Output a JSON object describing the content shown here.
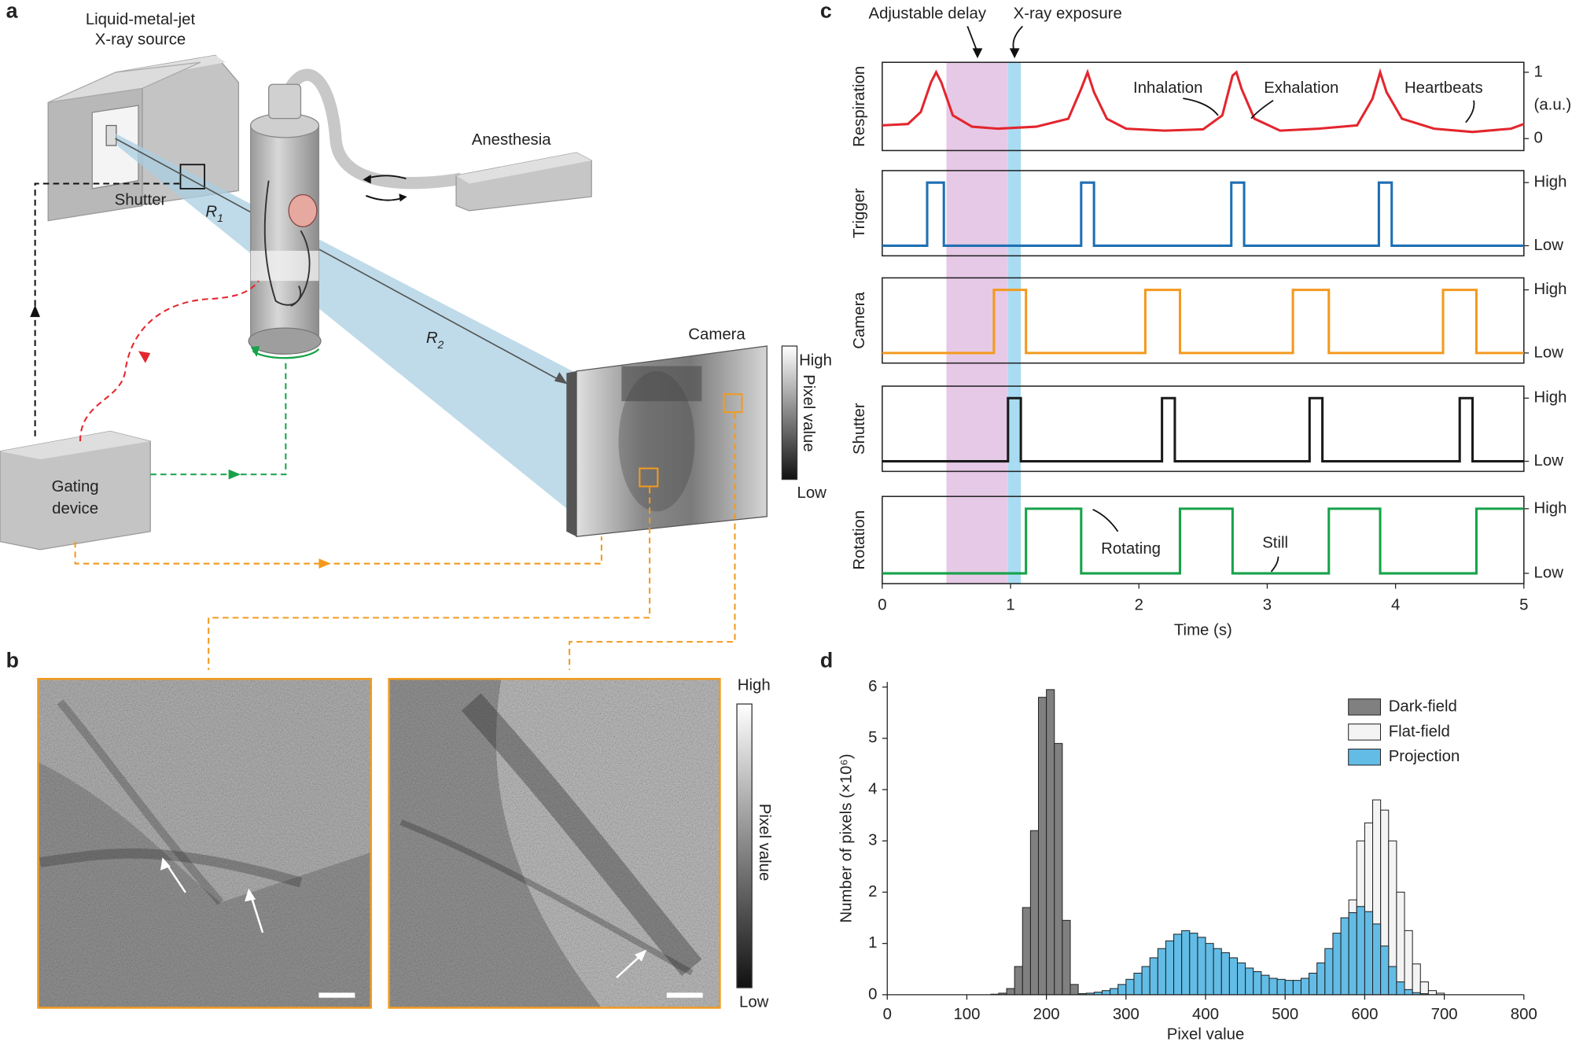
{
  "panel_labels": {
    "a": "a",
    "b": "b",
    "c": "c",
    "d": "d"
  },
  "panel_a": {
    "source": [
      "Liquid-metal-jet",
      "X-ray source"
    ],
    "shutter": "Shutter",
    "r1": {
      "symbol": "R",
      "subscript": "1"
    },
    "r2": {
      "symbol": "R",
      "subscript": "2"
    },
    "anesthesia": "Anesthesia",
    "camera": "Camera",
    "gating": [
      "Gating",
      "device"
    ],
    "colorbar": {
      "high": "High",
      "label": "Pixel value",
      "low": "Low"
    }
  },
  "panel_b": {
    "colorbar": {
      "high": "High",
      "label": "Pixel value",
      "low": "Low"
    }
  },
  "chart_data": [
    {
      "type": "line",
      "xlabel": "Time (s)",
      "xlim": [
        0,
        5
      ],
      "xticks": [
        0,
        1,
        2,
        3,
        4,
        5
      ],
      "shaded": [
        {
          "label": "Adjustable delay",
          "range": [
            0.5,
            0.98
          ],
          "color": "#e6c9e6"
        },
        {
          "label": "X-ray exposure",
          "range": [
            0.98,
            1.08
          ],
          "color": "#a9dcf2"
        }
      ],
      "annotations": [
        "Inhalation",
        "Exhalation",
        "Heartbeats",
        "Rotating",
        "Still"
      ],
      "subplots": [
        {
          "name": "Respiration",
          "color": "#e3262e",
          "unit": "(a.u.)",
          "ylim": [
            -0.18,
            1.15
          ],
          "yticks": [
            1,
            0
          ],
          "x": [
            0,
            0.2,
            0.3,
            0.38,
            0.42,
            0.46,
            0.55,
            0.7,
            0.9,
            1.2,
            1.45,
            1.55,
            1.6,
            1.65,
            1.75,
            1.9,
            2.2,
            2.5,
            2.65,
            2.73,
            2.76,
            2.8,
            2.9,
            3.1,
            3.4,
            3.7,
            3.82,
            3.88,
            3.93,
            4.05,
            4.3,
            4.6,
            4.9,
            5
          ],
          "values": [
            0.2,
            0.22,
            0.4,
            0.85,
            1.0,
            0.85,
            0.35,
            0.18,
            0.15,
            0.18,
            0.3,
            0.75,
            1.0,
            0.7,
            0.3,
            0.15,
            0.12,
            0.14,
            0.35,
            0.95,
            1.0,
            0.75,
            0.3,
            0.12,
            0.15,
            0.2,
            0.6,
            1.0,
            0.7,
            0.3,
            0.15,
            0.1,
            0.15,
            0.22
          ]
        },
        {
          "name": "Trigger",
          "color": "#1f6fb4",
          "ylim": [
            -0.16,
            1.19
          ],
          "yticks": [
            {
              "value": 1,
              "label": "High"
            },
            {
              "value": 0,
              "label": "Low"
            }
          ],
          "x": [
            0,
            0.35,
            0.35,
            0.48,
            0.48,
            1.55,
            1.55,
            1.65,
            1.65,
            2.72,
            2.72,
            2.82,
            2.82,
            3.87,
            3.87,
            3.97,
            3.97,
            5
          ],
          "values": [
            0,
            0,
            1,
            1,
            0,
            0,
            1,
            1,
            0,
            0,
            1,
            1,
            0,
            0,
            1,
            1,
            0,
            0
          ]
        },
        {
          "name": "Camera",
          "color": "#f39a1e",
          "ylim": [
            -0.16,
            1.19
          ],
          "yticks": [
            {
              "value": 1,
              "label": "High"
            },
            {
              "value": 0,
              "label": "Low"
            }
          ],
          "x": [
            0,
            0.87,
            0.87,
            1.12,
            1.12,
            2.05,
            2.05,
            2.32,
            2.32,
            3.2,
            3.2,
            3.48,
            3.48,
            4.37,
            4.37,
            4.63,
            4.63,
            5
          ],
          "values": [
            0,
            0,
            1,
            1,
            0,
            0,
            1,
            1,
            0,
            0,
            1,
            1,
            0,
            0,
            1,
            1,
            0,
            0
          ]
        },
        {
          "name": "Shutter",
          "color": "#1a1a1a",
          "ylim": [
            -0.16,
            1.19
          ],
          "yticks": [
            {
              "value": 1,
              "label": "High"
            },
            {
              "value": 0,
              "label": "Low"
            }
          ],
          "x": [
            0,
            0.98,
            0.98,
            1.08,
            1.08,
            2.18,
            2.18,
            2.28,
            2.28,
            3.33,
            3.33,
            3.43,
            3.43,
            4.5,
            4.5,
            4.6,
            4.6,
            5
          ],
          "values": [
            0,
            0,
            1,
            1,
            0,
            0,
            1,
            1,
            0,
            0,
            1,
            1,
            0,
            0,
            1,
            1,
            0,
            0
          ]
        },
        {
          "name": "Rotation",
          "color": "#17a24a",
          "ylim": [
            -0.16,
            1.19
          ],
          "yticks": [
            {
              "value": 1,
              "label": "High"
            },
            {
              "value": 0,
              "label": "Low"
            }
          ],
          "x": [
            0,
            1.12,
            1.12,
            1.55,
            1.55,
            2.32,
            2.32,
            2.73,
            2.73,
            3.48,
            3.48,
            3.88,
            3.88,
            4.63,
            4.63,
            5
          ],
          "values": [
            0,
            0,
            1,
            1,
            0,
            0,
            1,
            1,
            0,
            0,
            1,
            1,
            0,
            0,
            1,
            1
          ]
        }
      ]
    },
    {
      "type": "histogram",
      "xlabel": "Pixel value",
      "ylabel": "Number of pixels (×10⁶)",
      "xlim": [
        0,
        800
      ],
      "ylim": [
        0,
        6.1
      ],
      "xticks": [
        0,
        100,
        200,
        300,
        400,
        500,
        600,
        700,
        800
      ],
      "yticks": [
        0,
        1,
        2,
        3,
        4,
        5,
        6
      ],
      "legend": "upper right",
      "bins": [
        100,
        110,
        120,
        130,
        140,
        150,
        160,
        170,
        180,
        190,
        200,
        210,
        220,
        230,
        240,
        250,
        260,
        270,
        280,
        290,
        300,
        310,
        320,
        330,
        340,
        350,
        360,
        370,
        380,
        390,
        400,
        410,
        420,
        430,
        440,
        450,
        460,
        470,
        480,
        490,
        500,
        510,
        520,
        530,
        540,
        550,
        560,
        570,
        580,
        590,
        600,
        610,
        620,
        630,
        640,
        650,
        660,
        670,
        680,
        690,
        700,
        710,
        720,
        730,
        740,
        750
      ],
      "series": [
        {
          "name": "Dark-field",
          "color": "#808080",
          "values": [
            0,
            0,
            0,
            0.01,
            0.03,
            0.12,
            0.55,
            1.7,
            3.2,
            5.8,
            5.95,
            4.9,
            1.45,
            0.2,
            0.02,
            0,
            0,
            0,
            0,
            0,
            0,
            0,
            0,
            0,
            0,
            0,
            0,
            0,
            0,
            0,
            0,
            0,
            0,
            0,
            0,
            0,
            0,
            0,
            0,
            0,
            0,
            0,
            0,
            0,
            0,
            0,
            0,
            0,
            0,
            0,
            0,
            0,
            0,
            0,
            0,
            0,
            0,
            0,
            0,
            0,
            0,
            0,
            0,
            0,
            0
          ]
        },
        {
          "name": "Flat-field",
          "color": "#f4f4f4",
          "values": [
            0,
            0,
            0,
            0,
            0,
            0,
            0,
            0,
            0,
            0,
            0,
            0,
            0,
            0,
            0,
            0,
            0,
            0,
            0,
            0,
            0,
            0,
            0,
            0,
            0,
            0,
            0,
            0,
            0,
            0,
            0,
            0,
            0,
            0,
            0,
            0,
            0,
            0,
            0,
            0,
            0,
            0,
            0,
            0,
            0.05,
            0.15,
            0.5,
            1.2,
            1.85,
            3.0,
            3.35,
            3.8,
            3.6,
            3.0,
            2.0,
            1.25,
            0.6,
            0.25,
            0.08,
            0.03,
            0,
            0,
            0,
            0,
            0
          ]
        },
        {
          "name": "Projection",
          "color": "#62bce6",
          "values": [
            0,
            0,
            0,
            0,
            0,
            0,
            0,
            0,
            0,
            0,
            0,
            0,
            0,
            0,
            0.02,
            0.03,
            0.05,
            0.08,
            0.12,
            0.2,
            0.3,
            0.42,
            0.55,
            0.72,
            0.9,
            1.05,
            1.18,
            1.25,
            1.2,
            1.12,
            1.0,
            0.9,
            0.82,
            0.72,
            0.62,
            0.52,
            0.45,
            0.38,
            0.32,
            0.3,
            0.28,
            0.28,
            0.32,
            0.42,
            0.62,
            0.9,
            1.2,
            1.5,
            1.6,
            1.72,
            1.62,
            1.38,
            0.95,
            0.55,
            0.25,
            0.1,
            0.04,
            0.02,
            0,
            0,
            0,
            0,
            0,
            0,
            0
          ]
        }
      ]
    }
  ]
}
